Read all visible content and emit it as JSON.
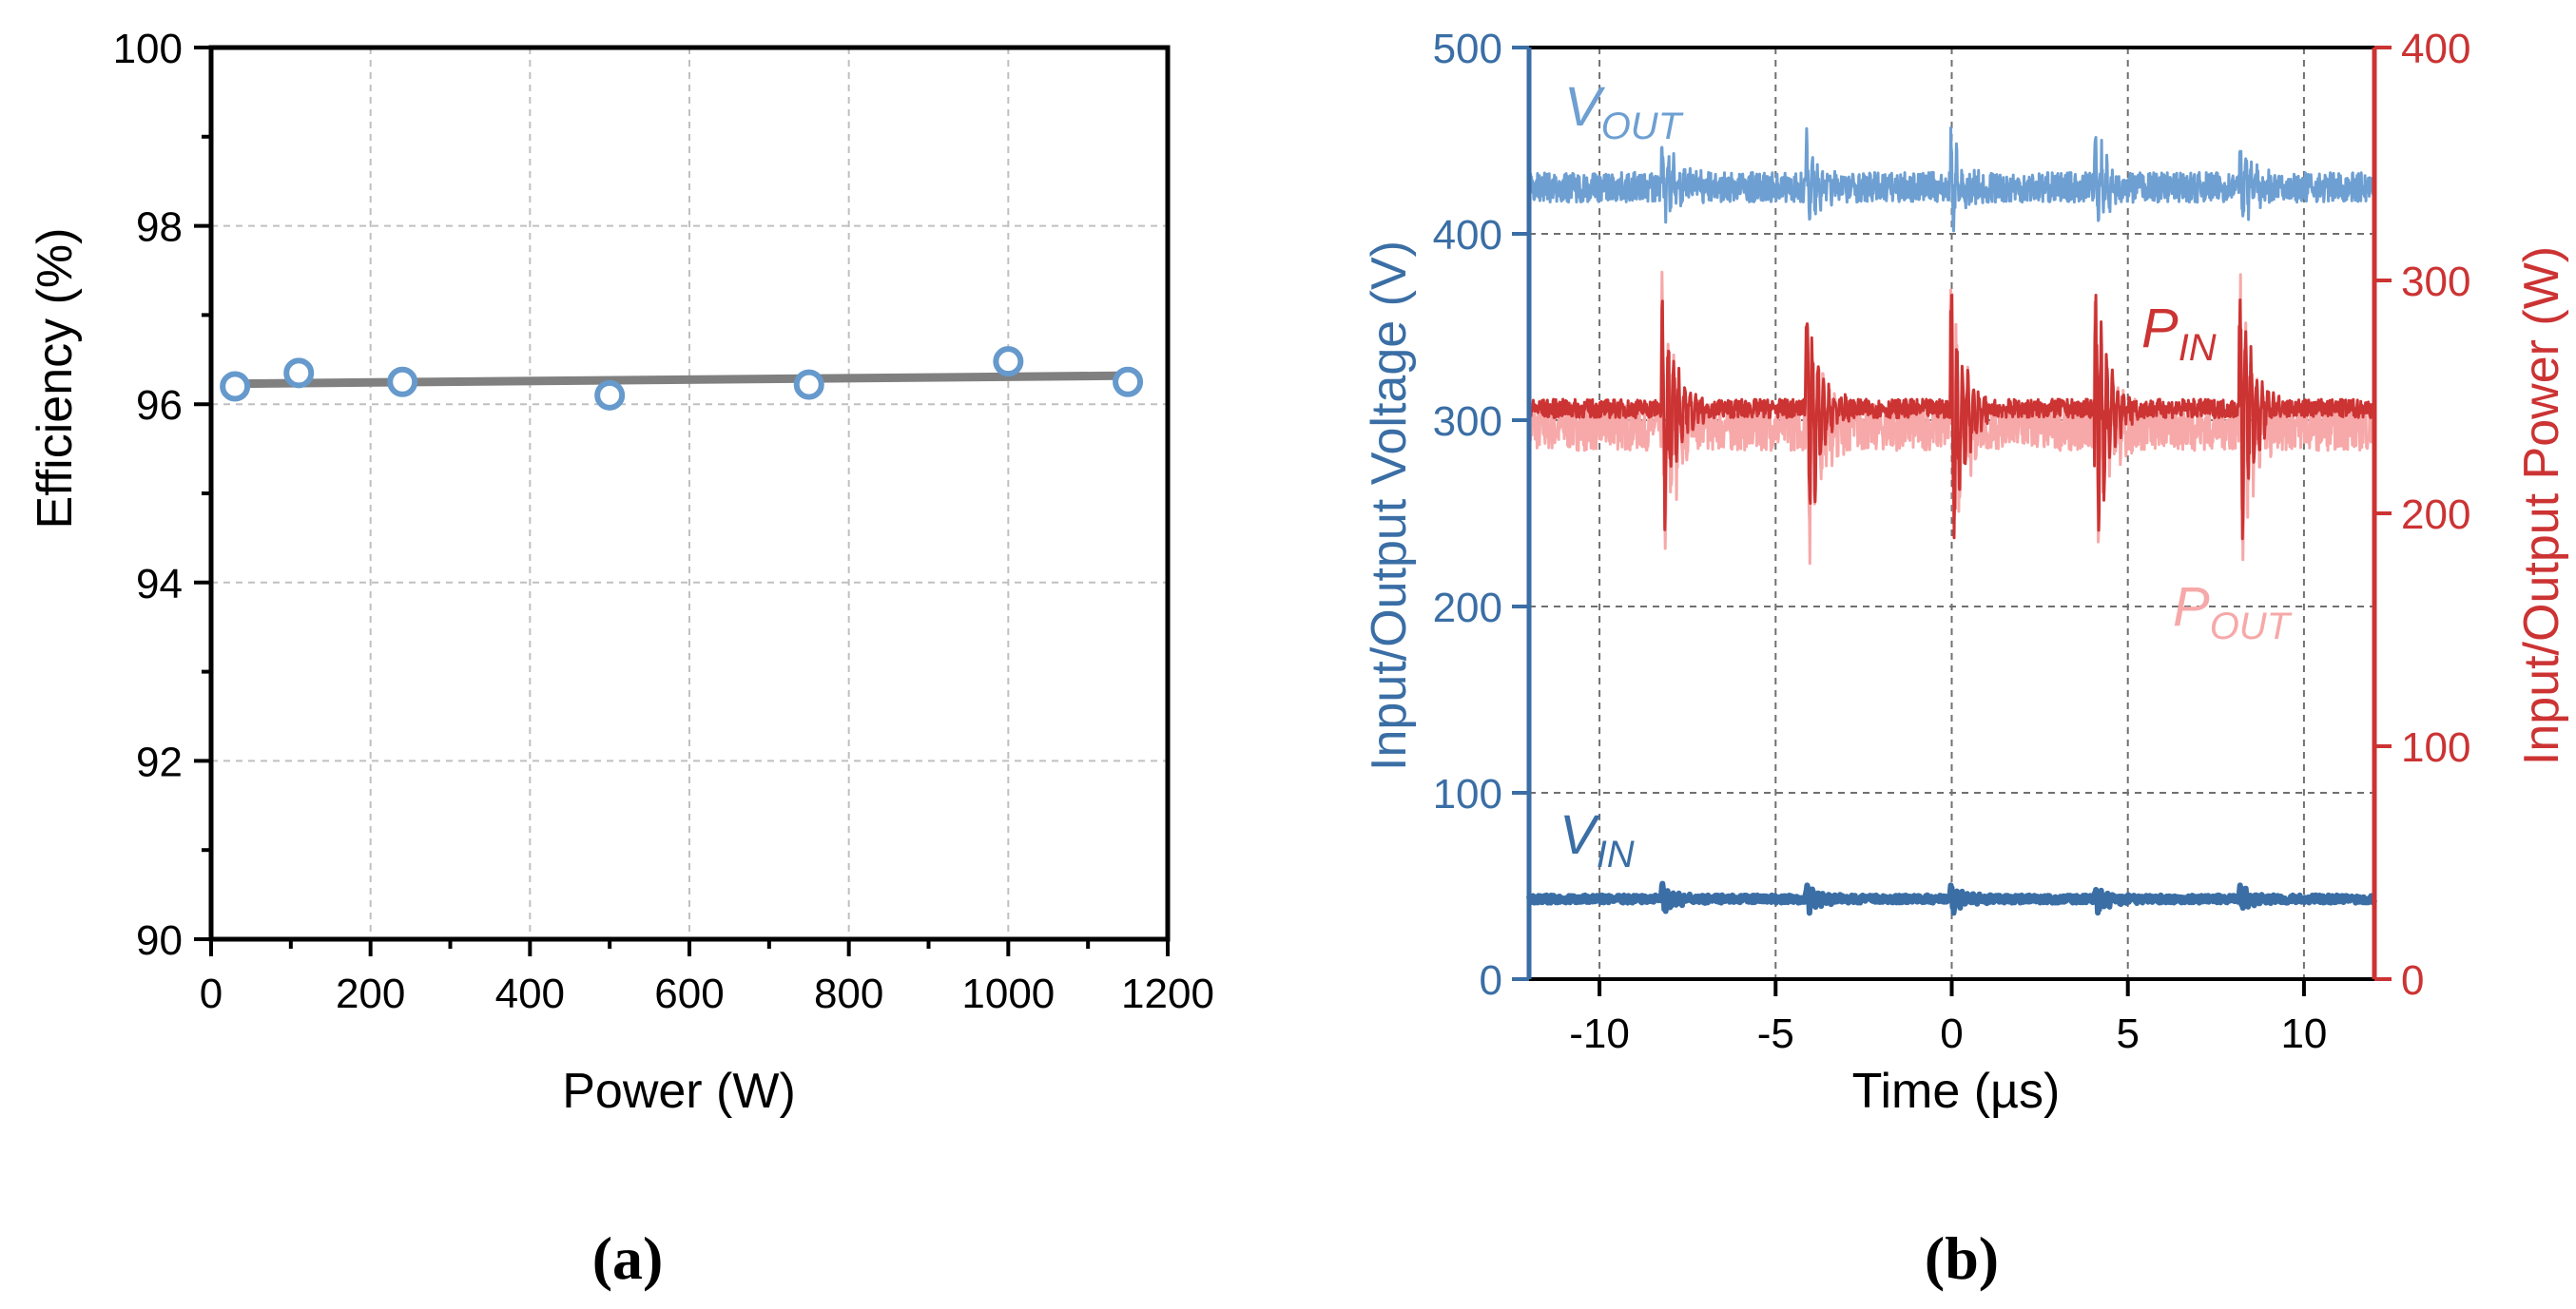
{
  "colors": {
    "efficiency_fit": "#808080",
    "efficiency_marker": "#6699cc",
    "vout": "#6e9fd2",
    "vin": "#3a6ea5",
    "pin": "#cc3333",
    "pout": "#f7a8a8",
    "left_axis_b": "#3a6ea5",
    "right_axis_b": "#cc3333",
    "grid": "#c0c0c0"
  },
  "panels": {
    "a": "(a)",
    "b": "(b)"
  },
  "chart_data": [
    {
      "type": "scatter",
      "panel": "(a)",
      "xlabel": "Power (W)",
      "ylabel": "Efficiency (%)",
      "xlim": [
        0,
        1200
      ],
      "ylim": [
        90,
        100
      ],
      "xticks": [
        "0",
        "200",
        "400",
        "600",
        "800",
        "1000",
        "1200"
      ],
      "yticks": [
        "90",
        "92",
        "94",
        "96",
        "98",
        "100"
      ],
      "grid": true,
      "series": [
        {
          "kind": "markers",
          "x": [
            30,
            110,
            240,
            500,
            750,
            1000,
            1150
          ],
          "y": [
            96.2,
            96.35,
            96.25,
            96.1,
            96.22,
            96.48,
            96.25
          ]
        },
        {
          "kind": "fit-line",
          "x": [
            30,
            1150
          ],
          "y": [
            96.23,
            96.32
          ]
        }
      ]
    },
    {
      "type": "line",
      "panel": "(b)",
      "xlabel": "Time (µs)",
      "ylabel_left": "Input/Output Voltage (V)",
      "ylabel_right": "Input/Output Power (W)",
      "xlim": [
        -12,
        12
      ],
      "ylim_left": [
        0,
        500
      ],
      "ylim_right": [
        0,
        400
      ],
      "xticks": [
        "-10",
        "-5",
        "0",
        "5",
        "10"
      ],
      "yticks_left": [
        "0",
        "100",
        "200",
        "300",
        "400",
        "500"
      ],
      "yticks_right": [
        "0",
        "100",
        "200",
        "300",
        "400"
      ],
      "grid": true,
      "transient_times": [
        -8.2,
        -4.1,
        0,
        4.1,
        8.2
      ],
      "series": [
        {
          "name": "V",
          "sub": "OUT",
          "axis": "left",
          "baseline": 425,
          "noise_band": 8,
          "spike_up": 455,
          "spike_down": 402
        },
        {
          "name": "V",
          "sub": "IN",
          "axis": "left",
          "baseline": 43,
          "noise_band": 2,
          "spike_up": 50,
          "spike_down": 34
        },
        {
          "name": "P",
          "sub": "IN",
          "axis": "right",
          "baseline": 245,
          "noise_band": 4,
          "spike_up": 300,
          "spike_down": 170
        },
        {
          "name": "P",
          "sub": "OUT",
          "axis": "right",
          "baseline": 237,
          "noise_band": 10,
          "spike_up": 300,
          "spike_down": 167
        }
      ]
    }
  ]
}
